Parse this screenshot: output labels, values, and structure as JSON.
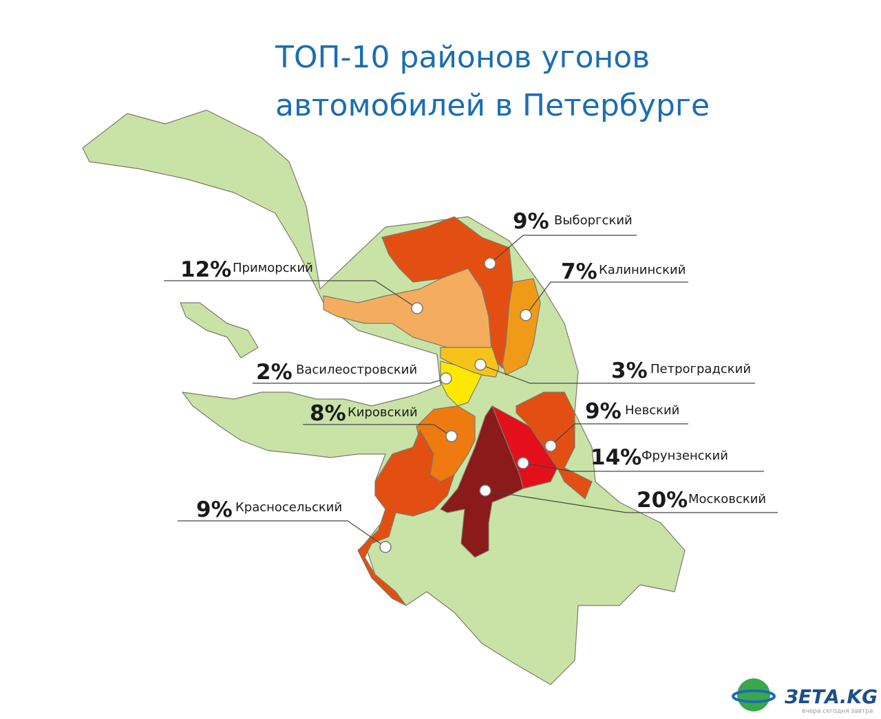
{
  "title": {
    "line1": "ТОП-10 районов угонов",
    "line2": "автомобилей в Петербурге"
  },
  "districts": [
    {
      "percent": "9%",
      "name": "Выборгский"
    },
    {
      "percent": "7%",
      "name": "Калининский"
    },
    {
      "percent": "12%",
      "name": "Приморский"
    },
    {
      "percent": "2%",
      "name": "Василеостровский"
    },
    {
      "percent": "3%",
      "name": "Петроградский"
    },
    {
      "percent": "8%",
      "name": "Кировский"
    },
    {
      "percent": "9%",
      "name": "Невский"
    },
    {
      "percent": "14%",
      "name": "Фрунзенский"
    },
    {
      "percent": "20%",
      "name": "Московский"
    },
    {
      "percent": "9%",
      "name": "Красносельский"
    }
  ],
  "logo": {
    "name": "ЗЕТА.KG",
    "tagline": "вчера сегодня завтра"
  }
}
